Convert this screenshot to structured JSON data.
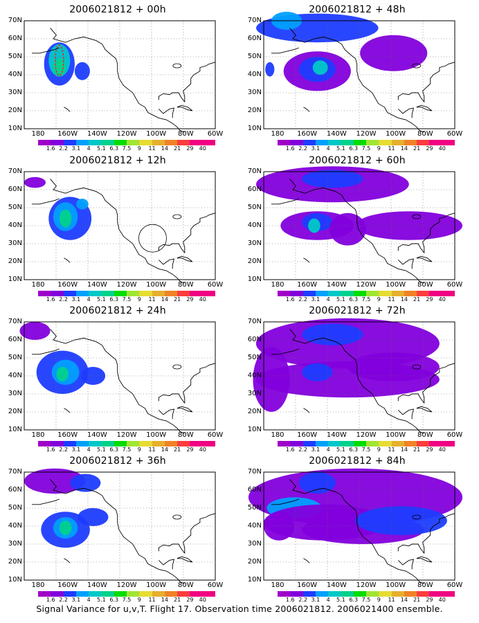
{
  "panels": [
    {
      "title": "2006021812 + 00h"
    },
    {
      "title": "2006021812 + 48h"
    },
    {
      "title": "2006021812 + 12h"
    },
    {
      "title": "2006021812 + 60h"
    },
    {
      "title": "2006021812 + 24h"
    },
    {
      "title": "2006021812 + 72h"
    },
    {
      "title": "2006021812 + 36h"
    },
    {
      "title": "2006021812 + 84h"
    }
  ],
  "y_ticks": [
    "70N",
    "60N",
    "50N",
    "40N",
    "30N",
    "20N",
    "10N"
  ],
  "x_ticks": [
    "180",
    "160W",
    "140W",
    "120W",
    "100W",
    "80W",
    "60W"
  ],
  "colorbar": {
    "labels": [
      "1.6",
      "2.2",
      "3.1",
      "4",
      "5.1",
      "6.3",
      "7.5",
      "9",
      "11",
      "14",
      "21",
      "29",
      "40"
    ],
    "colors": [
      "#a000c8",
      "#8200dc",
      "#1e3cff",
      "#00a0ff",
      "#00c8c8",
      "#00d28c",
      "#00dc00",
      "#a0e632",
      "#e6dc32",
      "#e6af2d",
      "#f08228",
      "#fa3c3c",
      "#f00082"
    ]
  },
  "caption": "Signal Variance for u,v,T. Flight 17. Observation time 2006021812. 2006021400 ensemble."
}
